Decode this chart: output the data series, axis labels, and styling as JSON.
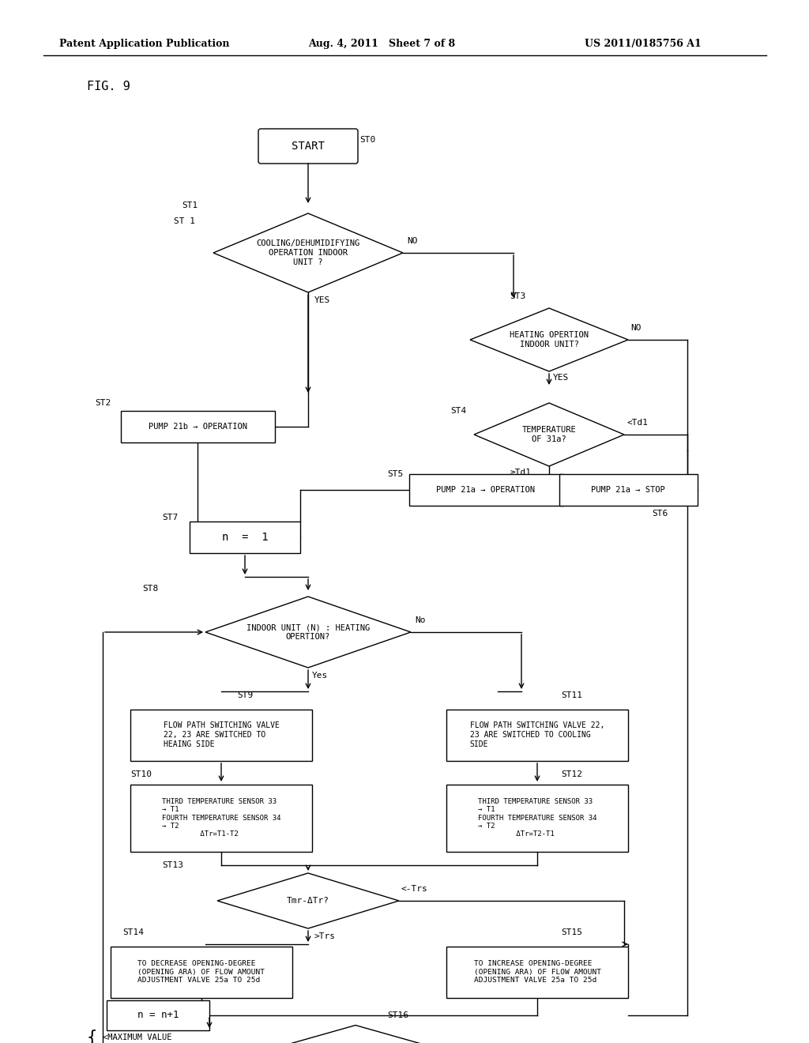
{
  "bg_color": "#ffffff",
  "header_left": "Patent Application Publication",
  "header_mid": "Aug. 4, 2011   Sheet 7 of 8",
  "header_right": "US 2011/0185756 A1",
  "figure_label": "FIG. 9"
}
